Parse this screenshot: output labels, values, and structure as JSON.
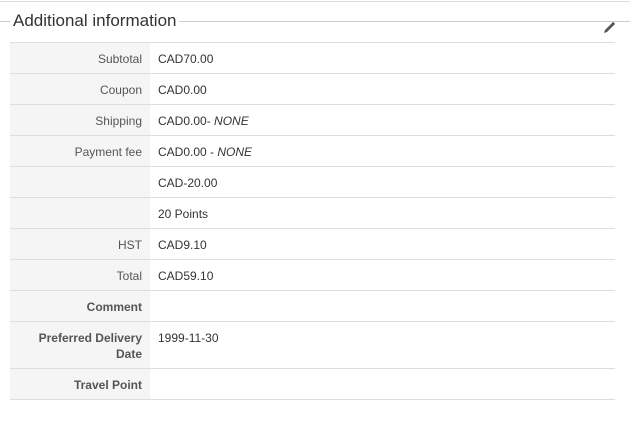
{
  "panel": {
    "title": "Additional information",
    "edit_icon": "pencil-icon"
  },
  "rows": [
    {
      "label": "Subtotal",
      "value": "CAD70.00",
      "suffix": "",
      "bold": false
    },
    {
      "label": "Coupon",
      "value": "CAD0.00",
      "suffix": "",
      "bold": false
    },
    {
      "label": "Shipping",
      "value": "CAD0.00- ",
      "suffix": "NONE",
      "bold": false
    },
    {
      "label": "Payment fee",
      "value": "CAD0.00 - ",
      "suffix": "NONE",
      "bold": false
    },
    {
      "label": "",
      "value": "CAD-20.00",
      "suffix": "",
      "bold": false
    },
    {
      "label": "",
      "value": "20 Points",
      "suffix": "",
      "bold": false
    },
    {
      "label": "HST",
      "value": "CAD9.10",
      "suffix": "",
      "bold": false
    },
    {
      "label": "Total",
      "value": "CAD59.10",
      "suffix": "",
      "bold": false
    },
    {
      "label": "Comment",
      "value": "",
      "suffix": "",
      "bold": true
    },
    {
      "label": "Preferred Delivery Date",
      "value": "1999-11-30",
      "suffix": "",
      "bold": true
    },
    {
      "label": "Travel Point",
      "value": "",
      "suffix": "",
      "bold": true
    }
  ]
}
